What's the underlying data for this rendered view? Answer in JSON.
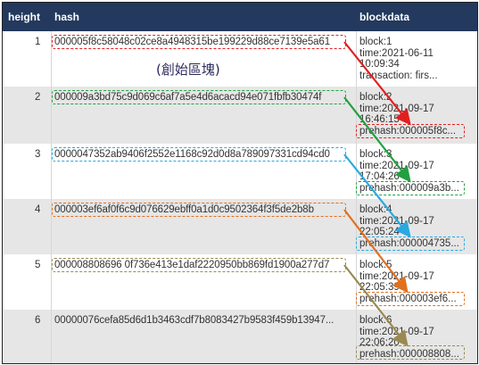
{
  "table": {
    "headers": {
      "height": "height",
      "hash": "hash",
      "blockdata": "blockdata"
    },
    "rows": [
      {
        "height": "1",
        "hash": "000005f8c58048c02ce8a4948315be199229d88ce7139e5a61",
        "blockdata": [
          "block:1",
          "time:2021-06-11",
          "10:09:34",
          "transaction: firs..."
        ]
      },
      {
        "height": "2",
        "hash": "000009a3bd75c9d069c6af7a5e4d6acacd94e071fbfb30474f",
        "blockdata": [
          "block:2",
          "time:2021-09-17",
          "16:46:15",
          "prehash:000005f8c..."
        ]
      },
      {
        "height": "3",
        "hash": "0000047352ab9406f2552e1168c92d0d8a789097331cd94cd0",
        "blockdata": [
          "block:3",
          "time:2021-09-17",
          "17:04:26",
          "prehash:000009a3b..."
        ]
      },
      {
        "height": "4",
        "hash": "000003ef6af0f6c9d076629ebff0a1d0c9502364f3f5de2b8b",
        "blockdata": [
          "block:4",
          "time:2021-09-17",
          "22:05:24",
          "prehash:000004735..."
        ]
      },
      {
        "height": "5",
        "hash": "000008808696 0f736e413e1daf2220950bb869fd1900a277d7",
        "blockdata": [
          "block:5",
          "time:2021-09-17",
          "22:05:39",
          "prehash:000003ef6..."
        ]
      },
      {
        "height": "6",
        "hash": "00000076cefa85d6d1b3463cdf7b8083427b9583f459b13947...",
        "blockdata": [
          "block:6",
          "time:2021-09-17",
          "22:06:20",
          "prehash:000008808..."
        ]
      }
    ]
  },
  "annotation": {
    "genesis_label": "(創始區塊)"
  },
  "colors": {
    "header_bg": "#23395d",
    "row_alt_bg": "#e6e6e6",
    "block1": "#e02020",
    "block2": "#22a040",
    "block3": "#2aa8e0",
    "block4": "#e07020",
    "block5": "#9a8a50"
  }
}
